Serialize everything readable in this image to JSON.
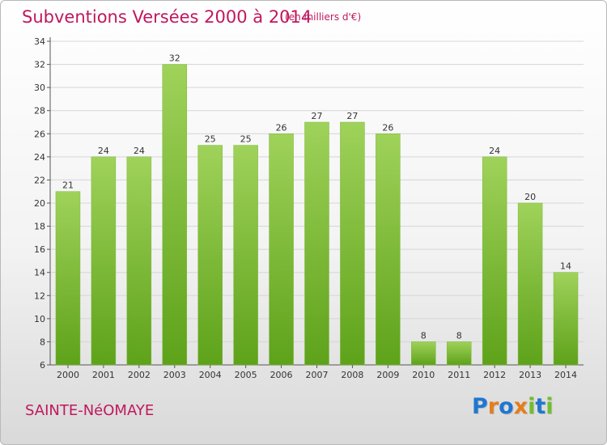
{
  "header": {
    "title": "Subventions Versées 2000 à 2014",
    "subtitle": "(en milliers d'€)"
  },
  "footer": {
    "commune": "SAINTE-NéOMAYE",
    "logo_letters": [
      {
        "ch": "P",
        "color": "#1f77d0"
      },
      {
        "ch": "r",
        "color": "#e67d1c"
      },
      {
        "ch": "o",
        "color": "#1f77d0"
      },
      {
        "ch": "x",
        "color": "#e67d1c"
      },
      {
        "ch": "i",
        "color": "#6fbf2a"
      },
      {
        "ch": "t",
        "color": "#1f77d0"
      },
      {
        "ch": "i",
        "color": "#6fbf2a"
      }
    ]
  },
  "colors": {
    "accent": "#c0185e",
    "bar_top": "#9fd25a",
    "bar_bottom": "#5ea21a"
  },
  "chart_data": {
    "type": "bar",
    "title": "Subventions Versées 2000 à 2014",
    "subtitle": "(en milliers d'€)",
    "categories": [
      "2000",
      "2001",
      "2002",
      "2003",
      "2004",
      "2005",
      "2006",
      "2007",
      "2008",
      "2009",
      "2010",
      "2011",
      "2012",
      "2013",
      "2014"
    ],
    "values": [
      21,
      24,
      24,
      32,
      25,
      25,
      26,
      27,
      27,
      26,
      8,
      8,
      24,
      20,
      14
    ],
    "ylim": [
      6,
      34
    ],
    "yticks": [
      6,
      8,
      10,
      12,
      14,
      16,
      18,
      20,
      22,
      24,
      26,
      28,
      30,
      32,
      34
    ],
    "grid": true,
    "data_labels": true
  }
}
